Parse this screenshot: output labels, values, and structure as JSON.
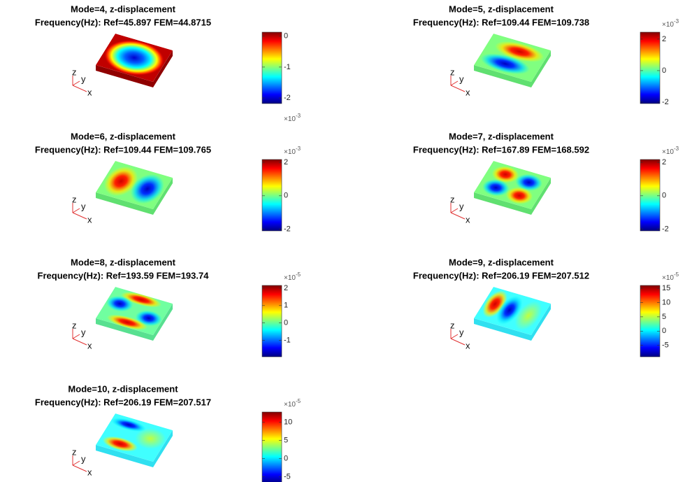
{
  "panels": [
    {
      "title": "Mode=4, z-displacement",
      "subtitle": "Frequency(Hz): Ref=45.897 FEM=44.8715",
      "axes": {
        "x": "x",
        "y": "y",
        "z": "z"
      },
      "colorbar": {
        "ticks": [
          0,
          -1,
          -2
        ],
        "clim": [
          -2.18,
          0.13
        ],
        "exponent_base": "×10",
        "exponent": "-3"
      }
    },
    {
      "title": "Mode=5, z-displacement",
      "subtitle": "Frequency(Hz): Ref=109.44 FEM=109.738",
      "axes": {
        "x": "x",
        "y": "y",
        "z": "z"
      },
      "colorbar": {
        "ticks": [
          2,
          0,
          -2
        ],
        "clim": [
          -2.09,
          2.44
        ],
        "exponent_base": "×10",
        "exponent": "-3"
      }
    },
    {
      "title": "Mode=6, z-displacement",
      "subtitle": "Frequency(Hz): Ref=109.44 FEM=109.765",
      "axes": {
        "x": "x",
        "y": "y",
        "z": "z"
      },
      "colorbar": {
        "ticks": [
          2,
          0,
          -2
        ],
        "clim": [
          -2.1,
          2.17
        ],
        "exponent_base": "×10",
        "exponent": "-3"
      }
    },
    {
      "title": "Mode=7, z-displacement",
      "subtitle": "Frequency(Hz): Ref=167.89 FEM=168.592",
      "axes": {
        "x": "x",
        "y": "y",
        "z": "z"
      },
      "colorbar": {
        "ticks": [
          2,
          0,
          -2
        ],
        "clim": [
          -2.1,
          2.17
        ],
        "exponent_base": "×10",
        "exponent": "-3"
      }
    },
    {
      "title": "Mode=8, z-displacement",
      "subtitle": "Frequency(Hz): Ref=193.59 FEM=193.74",
      "axes": {
        "x": "x",
        "y": "y",
        "z": "z"
      },
      "colorbar": {
        "ticks": [
          2,
          1,
          0,
          -1
        ],
        "clim": [
          -1.95,
          2.16
        ],
        "exponent_base": "×10",
        "exponent": "-5"
      }
    },
    {
      "title": "Mode=9, z-displacement",
      "subtitle": "Frequency(Hz): Ref=206.19 FEM=207.512",
      "axes": {
        "x": "x",
        "y": "y",
        "z": "z"
      },
      "colorbar": {
        "ticks": [
          15,
          10,
          5,
          0,
          -5
        ],
        "clim": [
          -9,
          16
        ],
        "exponent_base": "×10",
        "exponent": "-5"
      }
    },
    {
      "title": "Mode=10, z-displacement",
      "subtitle": "Frequency(Hz): Ref=206.19 FEM=207.517",
      "axes": {
        "x": "x",
        "y": "y",
        "z": "z"
      },
      "colorbar": {
        "ticks": [
          10,
          5,
          0,
          -5
        ],
        "clim": [
          -6.8,
          12.8
        ],
        "exponent_base": "×10",
        "exponent": "-5"
      }
    }
  ]
}
